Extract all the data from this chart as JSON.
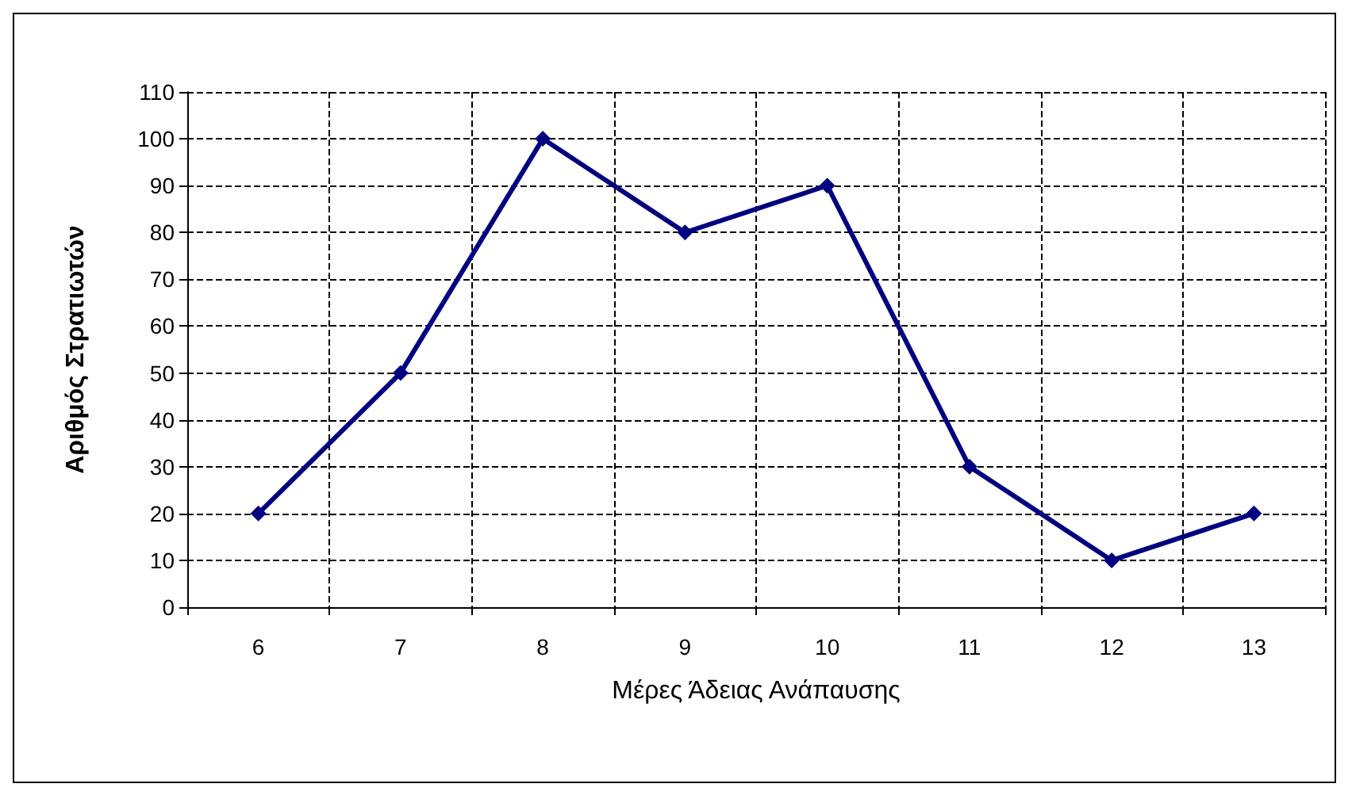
{
  "chart_data": {
    "type": "line",
    "xlabel": "Μέρες Άδειας Ανάπαυσης",
    "ylabel": "Αριθμός Στρατιωτών",
    "categories": [
      "6",
      "7",
      "8",
      "9",
      "10",
      "11",
      "12",
      "13"
    ],
    "series": [
      {
        "color": "#000080",
        "values": [
          20,
          50,
          100,
          80,
          90,
          30,
          10,
          20
        ]
      }
    ],
    "ylim": [
      0,
      110
    ],
    "yticks": [
      0,
      10,
      20,
      30,
      40,
      50,
      60,
      70,
      80,
      90,
      100,
      110
    ],
    "grid": true,
    "marker": "diamond",
    "line_style": "solid"
  }
}
